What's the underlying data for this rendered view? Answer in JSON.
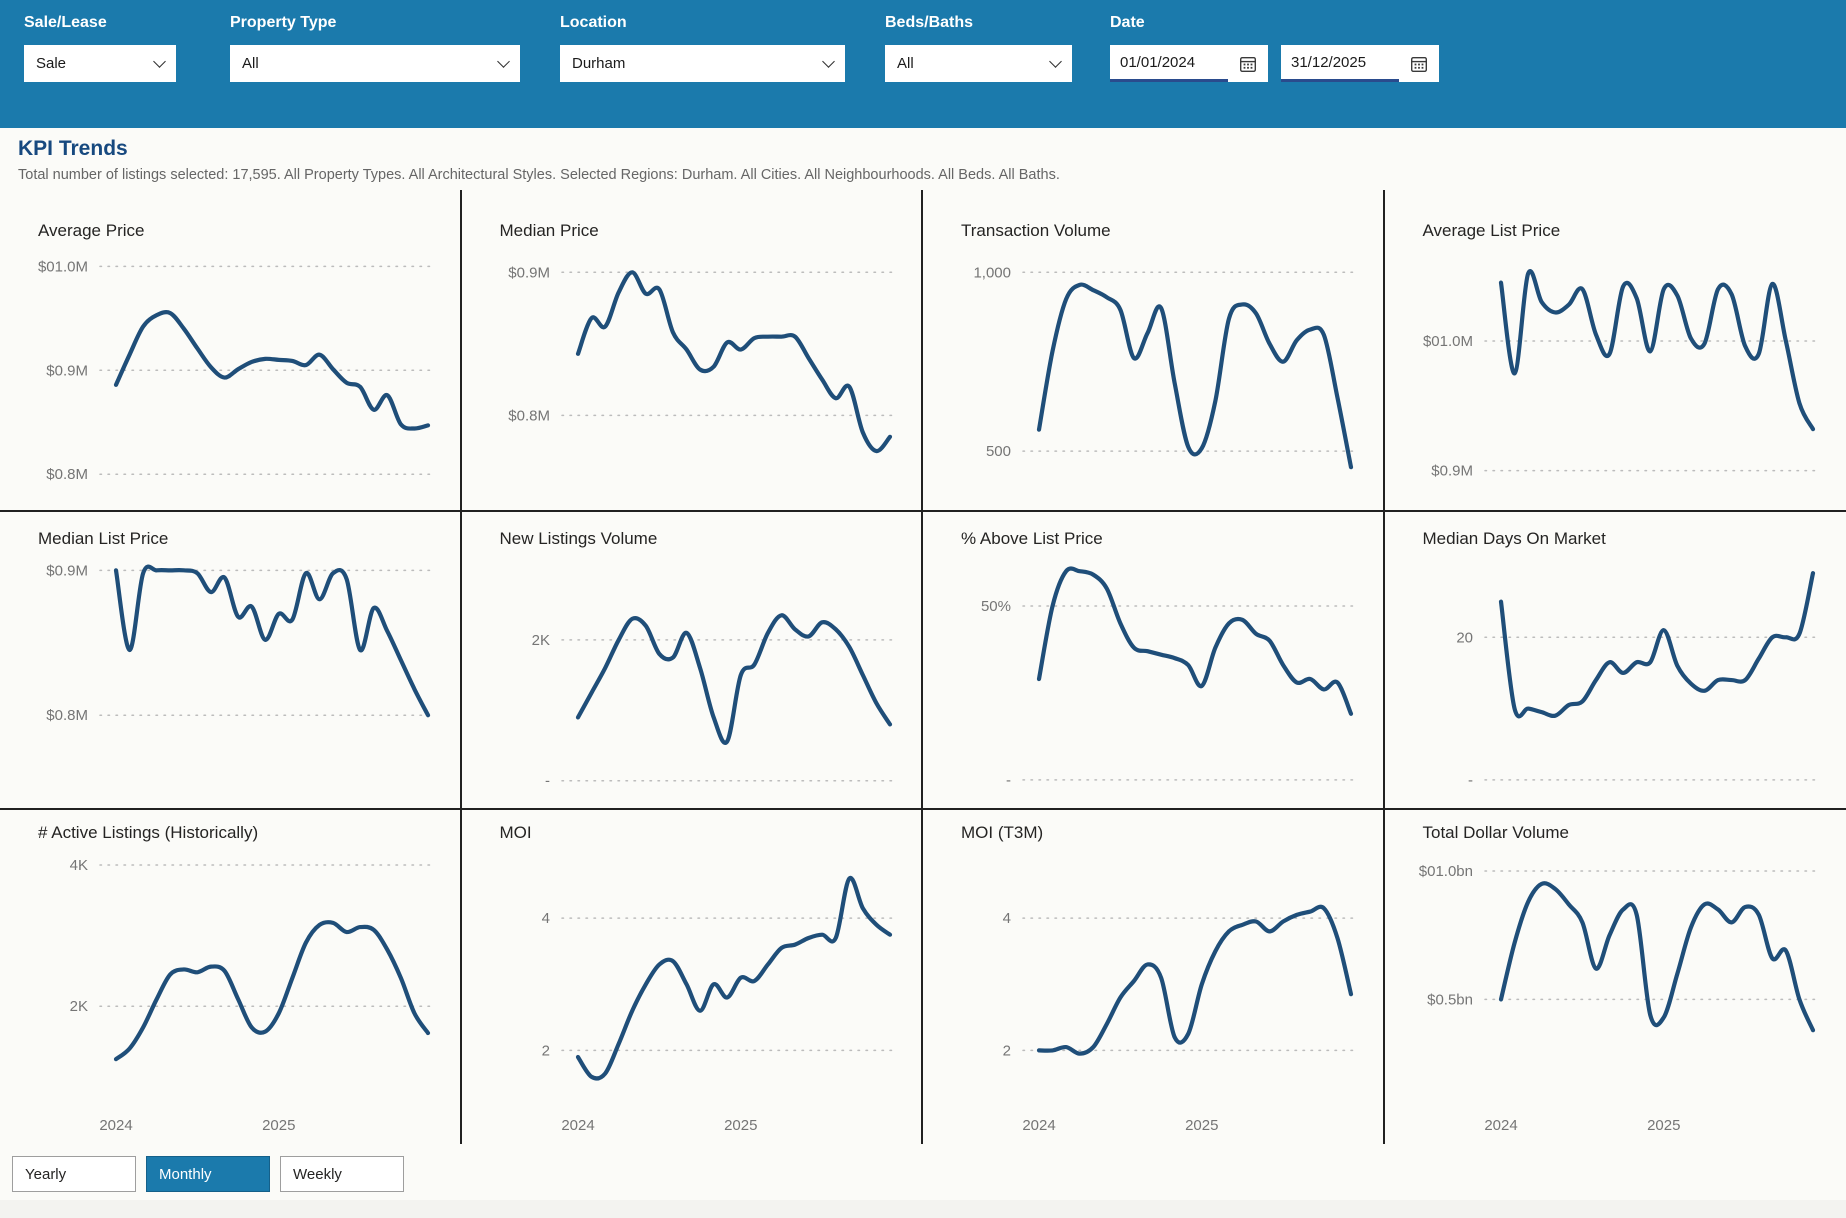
{
  "topbar": {
    "filters": [
      {
        "label": "Sale/Lease",
        "value": "Sale"
      },
      {
        "label": "Property Type",
        "value": "All"
      },
      {
        "label": "Location",
        "value": "Durham"
      },
      {
        "label": "Beds/Baths",
        "value": "All"
      }
    ],
    "date": {
      "label": "Date",
      "start": "01/01/2024",
      "end": "31/12/2025"
    }
  },
  "header": {
    "title": "KPI Trends",
    "subtitle": "Total number of listings selected: 17,595. All Property Types. All Architectural Styles. Selected Regions: Durham. All Cities. All Neighbourhoods. All Beds. All Baths."
  },
  "view_toggle": {
    "options": [
      "Yearly",
      "Monthly",
      "Weekly"
    ],
    "active": "Monthly"
  },
  "icons": {
    "dropdown": "chevron-down-icon",
    "date": "calendar-icon"
  },
  "colors": {
    "accent": "#1b7aac",
    "line": "#1f4e79",
    "grid_divider": "#212121",
    "heading": "#17497f"
  },
  "chart_data": [
    {
      "type": "line",
      "title": "Average Price",
      "y_ticks": [
        {
          "label": "$01.0M",
          "value": 1.0
        },
        {
          "label": "$0.9M",
          "value": 0.9
        },
        {
          "label": "$0.8M",
          "value": 0.8
        }
      ],
      "y_range": [
        0.781,
        1.008
      ],
      "values": [
        0.886,
        0.915,
        0.942,
        0.953,
        0.955,
        0.94,
        0.921,
        0.903,
        0.893,
        0.901,
        0.908,
        0.911,
        0.91,
        0.909,
        0.905,
        0.915,
        0.901,
        0.888,
        0.884,
        0.862,
        0.876,
        0.848,
        0.844,
        0.847
      ]
    },
    {
      "type": "line",
      "title": "Median Price",
      "y_ticks": [
        {
          "label": "$0.9M",
          "value": 0.9
        },
        {
          "label": "$0.8M",
          "value": 0.8
        }
      ],
      "y_range": [
        0.745,
        0.91
      ],
      "values": [
        0.843,
        0.868,
        0.862,
        0.886,
        0.9,
        0.885,
        0.888,
        0.858,
        0.846,
        0.832,
        0.834,
        0.851,
        0.846,
        0.854,
        0.855,
        0.855,
        0.855,
        0.84,
        0.825,
        0.812,
        0.82,
        0.788,
        0.775,
        0.785
      ]
    },
    {
      "type": "line",
      "title": "Transaction Volume",
      "y_ticks": [
        {
          "label": "1,000",
          "value": 1000
        },
        {
          "label": "500",
          "value": 500
        }
      ],
      "y_range": [
        380,
        1040
      ],
      "values": [
        560,
        780,
        925,
        965,
        950,
        930,
        895,
        760,
        830,
        900,
        690,
        512,
        508,
        640,
        870,
        910,
        885,
        800,
        750,
        810,
        840,
        825,
        650,
        455
      ]
    },
    {
      "type": "line",
      "title": "Average List Price",
      "y_ticks": [
        {
          "label": "$01.0M",
          "value": 1.0
        },
        {
          "label": "$0.9M",
          "value": 0.9
        }
      ],
      "y_range": [
        0.882,
        1.064
      ],
      "values": [
        1.045,
        0.975,
        1.052,
        1.03,
        1.022,
        1.028,
        1.04,
        1.005,
        0.99,
        1.042,
        1.033,
        0.992,
        1.04,
        1.035,
        1.002,
        0.998,
        1.04,
        1.036,
        0.996,
        0.99,
        1.044,
        1.0,
        0.952,
        0.932
      ]
    },
    {
      "type": "line",
      "title": "Median List Price",
      "y_ticks": [
        {
          "label": "$0.9M",
          "value": 0.9
        },
        {
          "label": "$0.8M",
          "value": 0.8
        }
      ],
      "y_range": [
        0.747,
        0.903
      ],
      "values": [
        0.9,
        0.845,
        0.898,
        0.9,
        0.9,
        0.9,
        0.898,
        0.885,
        0.895,
        0.868,
        0.875,
        0.852,
        0.87,
        0.866,
        0.898,
        0.88,
        0.898,
        0.894,
        0.845,
        0.874,
        0.858,
        0.838,
        0.818,
        0.8
      ]
    },
    {
      "type": "line",
      "title": "New Listings Volume",
      "y_ticks": [
        {
          "label": "2K",
          "value": 2000
        },
        {
          "label": "-",
          "value": 0
        }
      ],
      "y_range": [
        -160,
        3050
      ],
      "values": [
        900,
        1250,
        1600,
        2000,
        2300,
        2200,
        1800,
        1750,
        2100,
        1600,
        900,
        560,
        1500,
        1650,
        2100,
        2350,
        2150,
        2050,
        2250,
        2150,
        1900,
        1500,
        1100,
        800
      ]
    },
    {
      "type": "line",
      "title": "% Above List Price",
      "y_ticks": [
        {
          "label": "50%",
          "value": 50
        },
        {
          "label": "-",
          "value": 0
        }
      ],
      "y_range": [
        -3.5,
        61.5
      ],
      "values": [
        29,
        50,
        60,
        60,
        59,
        55,
        45,
        38,
        37,
        36,
        35,
        33,
        27,
        38,
        45,
        46,
        42,
        40,
        33,
        28,
        29,
        26,
        28,
        19
      ]
    },
    {
      "type": "line",
      "title": "Median Days On Market",
      "y_ticks": [
        {
          "label": "20",
          "value": 20
        },
        {
          "label": "-",
          "value": 0
        }
      ],
      "y_range": [
        -1.7,
        30
      ],
      "values": [
        25,
        10,
        10,
        9.5,
        9,
        10.5,
        11,
        14,
        16.5,
        15,
        16.5,
        16.5,
        21,
        16,
        13.5,
        12.5,
        14,
        14,
        14,
        17,
        20,
        20,
        20.5,
        29
      ]
    },
    {
      "type": "line",
      "title": "# Active Listings (Historically)",
      "y_ticks": [
        {
          "label": "4K",
          "value": 4000
        },
        {
          "label": "2K",
          "value": 2000
        }
      ],
      "y_range": [
        700,
        4070
      ],
      "x_ticks": [
        {
          "label": "2024",
          "index": 0
        },
        {
          "label": "2025",
          "index": 12
        }
      ],
      "values": [
        1250,
        1400,
        1700,
        2100,
        2450,
        2520,
        2480,
        2560,
        2500,
        2100,
        1700,
        1640,
        1900,
        2400,
        2900,
        3150,
        3180,
        3050,
        3120,
        3080,
        2800,
        2400,
        1900,
        1620
      ]
    },
    {
      "type": "line",
      "title": "MOI",
      "y_ticks": [
        {
          "label": "4",
          "value": 4
        },
        {
          "label": "2",
          "value": 2
        }
      ],
      "y_range": [
        1.28,
        4.88
      ],
      "x_ticks": [
        {
          "label": "2024",
          "index": 0
        },
        {
          "label": "2025",
          "index": 12
        }
      ],
      "values": [
        1.9,
        1.6,
        1.65,
        2.1,
        2.6,
        3.0,
        3.3,
        3.35,
        3.0,
        2.6,
        3.0,
        2.8,
        3.1,
        3.05,
        3.3,
        3.55,
        3.6,
        3.7,
        3.75,
        3.7,
        4.6,
        4.15,
        3.9,
        3.75
      ]
    },
    {
      "type": "line",
      "title": "MOI (T3M)",
      "y_ticks": [
        {
          "label": "4",
          "value": 4
        },
        {
          "label": "2",
          "value": 2
        }
      ],
      "y_range": [
        1.28,
        4.88
      ],
      "x_ticks": [
        {
          "label": "2024",
          "index": 0
        },
        {
          "label": "2025",
          "index": 12
        }
      ],
      "values": [
        2.0,
        2.0,
        2.05,
        1.95,
        2.05,
        2.4,
        2.8,
        3.05,
        3.3,
        3.1,
        2.2,
        2.25,
        3.0,
        3.5,
        3.8,
        3.9,
        3.95,
        3.8,
        3.95,
        4.05,
        4.1,
        4.15,
        3.7,
        2.85
      ]
    },
    {
      "type": "line",
      "title": "Total Dollar Volume",
      "y_ticks": [
        {
          "label": "$01.0bn",
          "value": 1.0
        },
        {
          "label": "$0.5bn",
          "value": 0.5
        }
      ],
      "y_range": [
        0.116,
        1.043
      ],
      "x_ticks": [
        {
          "label": "2024",
          "index": 0
        },
        {
          "label": "2025",
          "index": 12
        }
      ],
      "values": [
        0.5,
        0.72,
        0.88,
        0.95,
        0.93,
        0.87,
        0.8,
        0.62,
        0.75,
        0.85,
        0.83,
        0.44,
        0.43,
        0.6,
        0.78,
        0.87,
        0.85,
        0.8,
        0.86,
        0.83,
        0.66,
        0.69,
        0.5,
        0.38
      ]
    }
  ]
}
